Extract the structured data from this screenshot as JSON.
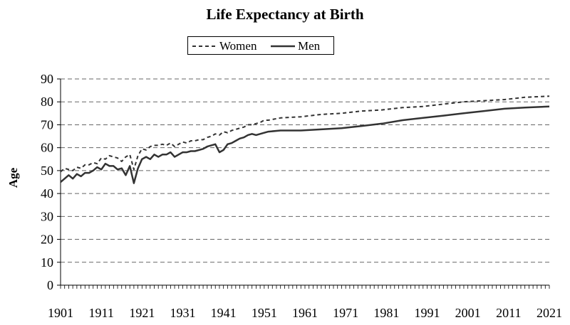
{
  "chart_data": {
    "type": "line",
    "title": "Life Expectancy at Birth",
    "xlabel": "",
    "ylabel": "Age",
    "xlim": [
      1901,
      2021
    ],
    "ylim": [
      0,
      90
    ],
    "x_ticks": [
      1901,
      1911,
      1921,
      1931,
      1941,
      1951,
      1961,
      1971,
      1981,
      1991,
      2001,
      2011,
      2021
    ],
    "y_ticks": [
      0,
      10,
      20,
      30,
      40,
      50,
      60,
      70,
      80,
      90
    ],
    "grid": "horizontal dashed",
    "legend_position": "top-center",
    "series": [
      {
        "name": "Women",
        "style": "dashed",
        "color": "#333333",
        "x": [
          1901,
          1902,
          1903,
          1904,
          1905,
          1906,
          1907,
          1908,
          1909,
          1910,
          1911,
          1912,
          1913,
          1914,
          1915,
          1916,
          1917,
          1918,
          1919,
          1920,
          1921,
          1922,
          1923,
          1924,
          1925,
          1926,
          1927,
          1928,
          1929,
          1930,
          1931,
          1932,
          1933,
          1934,
          1935,
          1936,
          1937,
          1938,
          1939,
          1940,
          1941,
          1942,
          1943,
          1944,
          1945,
          1946,
          1947,
          1948,
          1949,
          1950,
          1951,
          1952,
          1955,
          1960,
          1965,
          1970,
          1975,
          1980,
          1985,
          1990,
          1995,
          2000,
          2005,
          2010,
          2015,
          2021
        ],
        "values": [
          49.5,
          51,
          50.5,
          50,
          51.5,
          51,
          52.5,
          52.5,
          53.5,
          53,
          55.5,
          55,
          56.5,
          56,
          55.5,
          54,
          56,
          57,
          50.5,
          56.5,
          59.5,
          59,
          60.5,
          61,
          61,
          61.5,
          61,
          62,
          60.5,
          61.5,
          62.5,
          62,
          63,
          63,
          63.5,
          63.5,
          64.5,
          65,
          66,
          65.5,
          67,
          66.5,
          67.5,
          68,
          68.5,
          69,
          70,
          70,
          70.5,
          71,
          72,
          72,
          73,
          73.5,
          74.5,
          75,
          76,
          76.5,
          77.5,
          78,
          79,
          80,
          80.5,
          81,
          82,
          82.5
        ]
      },
      {
        "name": "Men",
        "style": "solid",
        "color": "#333333",
        "x": [
          1901,
          1902,
          1903,
          1904,
          1905,
          1906,
          1907,
          1908,
          1909,
          1910,
          1911,
          1912,
          1913,
          1914,
          1915,
          1916,
          1917,
          1918,
          1919,
          1920,
          1921,
          1922,
          1923,
          1924,
          1925,
          1926,
          1927,
          1928,
          1929,
          1930,
          1931,
          1932,
          1933,
          1934,
          1935,
          1936,
          1937,
          1938,
          1939,
          1940,
          1941,
          1942,
          1943,
          1944,
          1945,
          1946,
          1947,
          1948,
          1949,
          1950,
          1951,
          1952,
          1955,
          1960,
          1965,
          1970,
          1975,
          1980,
          1985,
          1990,
          1995,
          2000,
          2005,
          2010,
          2015,
          2021
        ],
        "values": [
          45,
          46.5,
          48,
          46.5,
          48.5,
          47.5,
          49,
          49,
          50,
          51.5,
          50.5,
          53,
          52,
          52,
          50.5,
          51,
          48,
          52,
          44.5,
          51,
          55,
          56,
          55,
          57,
          56,
          57,
          57,
          58,
          56,
          57,
          58,
          58,
          58.5,
          58.5,
          59,
          59.5,
          60.5,
          61,
          61.5,
          58,
          59,
          61.5,
          62,
          63,
          64,
          64.5,
          65.5,
          66,
          65.5,
          66,
          66.5,
          67,
          67.5,
          67.5,
          68,
          68.5,
          69.5,
          70.5,
          72,
          73,
          74,
          75,
          76,
          77,
          77.5,
          78
        ]
      }
    ]
  }
}
